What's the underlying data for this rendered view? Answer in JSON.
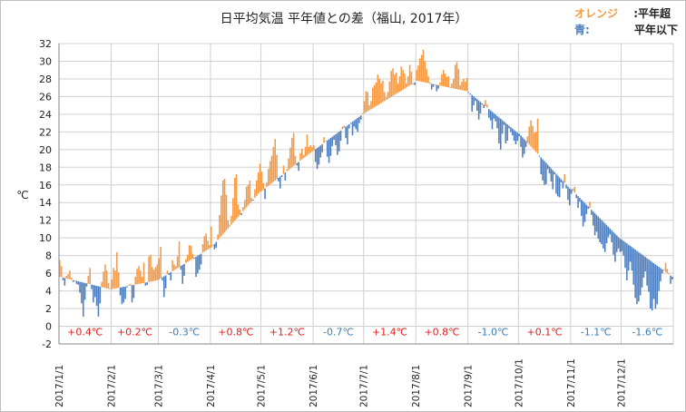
{
  "chart_data": {
    "type": "bar",
    "title": "日平均気温 平年値との差（福山, 2017年）",
    "xlabel": "",
    "ylabel": "℃",
    "ylim": [
      -2,
      32
    ],
    "yticks": [
      -2,
      0,
      2,
      4,
      6,
      8,
      10,
      12,
      14,
      16,
      18,
      20,
      22,
      24,
      26,
      28,
      30,
      32
    ],
    "grid": true,
    "legend": [
      {
        "label": "オレンジ",
        "suffix": ":平年超",
        "color": "#F59A45"
      },
      {
        "label": "青:",
        "suffix": "平年以下",
        "color": "#4E7FC0"
      }
    ],
    "colors": {
      "above": "#F59A45",
      "below": "#4E7FC0",
      "grid": "#d0d0d0",
      "axis": "#868686",
      "warm_text": "#E02020",
      "cool_text": "#3A7FB8"
    },
    "series_description": "Daily bars drawn from the normal-temperature value (baseline) to the observed daily mean temperature; orange where above normal, blue where at or below normal.",
    "months": [
      {
        "label": "2017/1/1",
        "anomaly": "+0.4℃",
        "sign": "warm",
        "normal_start": 5.6,
        "normal_end": 4.2,
        "obs": [
          7.5,
          6.8,
          5.2,
          4.6,
          5.7,
          5.9,
          6.3,
          5.5,
          5.0,
          5.2,
          4.8,
          4.7,
          3.8,
          2.6,
          1.1,
          3.0,
          4.5,
          5.7,
          6.6,
          4.2,
          2.7,
          3.3,
          2.3,
          1.1,
          2.6,
          5.0,
          6.2,
          7.0,
          6.3,
          4.9,
          4.3
        ]
      },
      {
        "label": "2017/2/1",
        "anomaly": "+0.2℃",
        "sign": "warm",
        "normal_start": 4.2,
        "normal_end": 5.2,
        "obs": [
          5.3,
          6.6,
          6.3,
          8.4,
          6.1,
          3.5,
          2.5,
          2.7,
          3.1,
          4.4,
          4.7,
          4.8,
          2.7,
          3.2,
          5.6,
          6.5,
          6.8,
          6.3,
          5.6,
          7.2,
          4.6,
          4.7,
          7.9,
          8.1,
          6.7,
          6.4,
          6.7,
          7.0
        ]
      },
      {
        "label": "2017/3/1",
        "anomaly": "-0.3℃",
        "sign": "cool",
        "normal_start": 5.3,
        "normal_end": 8.8,
        "obs": [
          7.7,
          9.0,
          5.2,
          3.3,
          4.3,
          6.3,
          5.8,
          5.2,
          7.5,
          7.0,
          6.8,
          7.9,
          9.6,
          6.4,
          4.8,
          5.7,
          7.6,
          8.1,
          9.2,
          9.1,
          8.2,
          7.7,
          5.6,
          6.0,
          6.4,
          7.0,
          9.3,
          10.2,
          10.5,
          9.7,
          9.2
        ]
      },
      {
        "label": "2017/4/1",
        "anomaly": "+0.8℃",
        "sign": "warm",
        "normal_start": 8.9,
        "normal_end": 15.2,
        "obs": [
          11.3,
          9.2,
          8.7,
          8.9,
          10.4,
          12.6,
          14.8,
          16.5,
          16.7,
          14.9,
          12.0,
          11.5,
          12.5,
          14.5,
          16.8,
          17.2,
          13.8,
          13.2,
          12.6,
          13.5,
          14.3,
          15.8,
          16.0,
          16.5,
          14.5,
          14.3,
          15.5,
          16.5,
          17.4,
          18.4
        ]
      },
      {
        "label": "2017/5/1",
        "anomaly": "+1.2℃",
        "sign": "warm",
        "normal_start": 15.3,
        "normal_end": 19.8,
        "obs": [
          17.5,
          16.2,
          14.4,
          16.3,
          17.8,
          18.7,
          19.3,
          20.3,
          21.2,
          19.4,
          16.4,
          15.6,
          16.9,
          18.2,
          16.5,
          17.8,
          19.0,
          20.2,
          21.3,
          21.9,
          19.3,
          18.2,
          17.6,
          19.6,
          20.1,
          19.4,
          20.3,
          21.7,
          20.3,
          20.5,
          20.3
        ]
      },
      {
        "label": "2017/6/1",
        "anomaly": "-0.7℃",
        "sign": "cool",
        "normal_start": 19.9,
        "normal_end": 24.0,
        "obs": [
          20.5,
          18.6,
          17.8,
          18.3,
          19.1,
          19.7,
          21.4,
          21.0,
          19.2,
          18.5,
          19.3,
          20.4,
          21.1,
          20.5,
          19.4,
          19.8,
          21.0,
          22.6,
          22.7,
          21.3,
          20.6,
          22.4,
          22.9,
          21.6,
          22.6,
          22.3,
          22.0,
          23.0,
          23.4,
          24.1
        ]
      },
      {
        "label": "2017/7/1",
        "anomaly": "+1.4℃",
        "sign": "warm",
        "normal_start": 24.1,
        "normal_end": 27.6,
        "obs": [
          25.5,
          26.6,
          26.5,
          25.0,
          25.5,
          27.0,
          27.3,
          27.6,
          28.5,
          28.0,
          27.5,
          27.8,
          26.5,
          25.9,
          26.5,
          27.7,
          28.9,
          29.2,
          28.5,
          28.7,
          27.5,
          28.3,
          29.4,
          29.0,
          28.6,
          27.5,
          28.3,
          29.6,
          28.8,
          27.5,
          27.3
        ]
      },
      {
        "label": "2017/8/1",
        "anomaly": "+0.8℃",
        "sign": "warm",
        "normal_start": 27.8,
        "normal_end": 26.6,
        "obs": [
          29.0,
          29.5,
          30.3,
          30.7,
          31.3,
          30.0,
          29.1,
          28.3,
          27.6,
          26.8,
          27.1,
          27.4,
          26.6,
          26.9,
          27.6,
          28.5,
          29.0,
          28.6,
          28.2,
          28.3,
          27.1,
          27.5,
          28.0,
          29.6,
          29.9,
          29.1,
          27.3,
          27.7,
          28.0,
          27.7,
          28.1
        ]
      },
      {
        "label": "2017/9/1",
        "anomaly": "-1.0℃",
        "sign": "cool",
        "normal_start": 26.5,
        "normal_end": 21.9,
        "obs": [
          26.5,
          26.2,
          24.3,
          25.0,
          25.5,
          24.4,
          23.4,
          24.1,
          25.1,
          24.7,
          25.6,
          25.1,
          23.6,
          23.3,
          22.3,
          23.5,
          23.2,
          22.4,
          20.7,
          20.0,
          21.8,
          22.8,
          20.7,
          21.0,
          22.4,
          22.0,
          21.6,
          21.0,
          20.6,
          21.0
        ]
      },
      {
        "label": "2017/10/1",
        "anomaly": "+0.1℃",
        "sign": "warm",
        "normal_start": 21.8,
        "normal_end": 15.6,
        "obs": [
          21.5,
          20.3,
          19.1,
          19.5,
          20.3,
          21.5,
          22.6,
          23.3,
          22.7,
          21.9,
          22.0,
          23.5,
          19.2,
          17.2,
          16.5,
          16.0,
          16.1,
          17.8,
          17.3,
          16.4,
          15.5,
          17.2,
          15.0,
          14.7,
          14.6,
          16.3,
          15.6,
          17.2,
          15.6,
          14.3,
          13.7
        ]
      },
      {
        "label": "2017/11/1",
        "anomaly": "-1.1℃",
        "sign": "cool",
        "normal_start": 15.5,
        "normal_end": 9.9,
        "obs": [
          15.0,
          15.6,
          15.8,
          14.5,
          13.4,
          14.1,
          12.5,
          11.3,
          11.8,
          12.7,
          13.3,
          14.1,
          12.6,
          11.4,
          10.3,
          10.7,
          9.9,
          9.5,
          9.3,
          8.8,
          8.4,
          9.4,
          10.1,
          10.4,
          9.5,
          8.1,
          7.3,
          8.4,
          8.8,
          8.4
        ]
      },
      {
        "label": "2017/12/1",
        "anomaly": "-1.6℃",
        "sign": "cool",
        "normal_start": 9.8,
        "normal_end": 5.6,
        "obs": [
          8.5,
          8.0,
          6.6,
          5.2,
          6.3,
          7.3,
          6.3,
          4.7,
          3.2,
          2.5,
          2.8,
          3.5,
          4.4,
          5.5,
          6.2,
          4.6,
          3.9,
          2.0,
          1.8,
          3.1,
          2.0,
          2.5,
          4.0,
          5.1,
          6.0,
          6.4,
          7.2,
          6.5,
          6.0,
          4.8,
          5.3
        ]
      }
    ]
  }
}
